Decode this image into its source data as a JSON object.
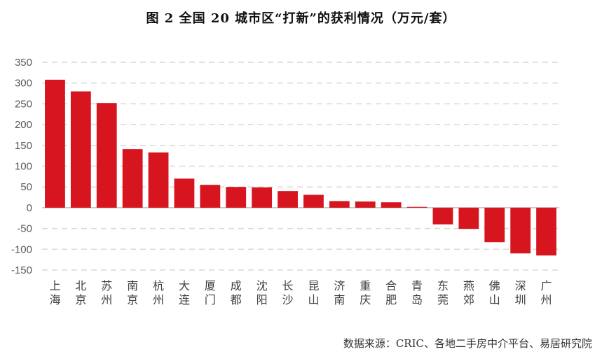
{
  "chart_data": {
    "type": "bar",
    "title": "图 2 全国 20 城市区“打新”的获利情况（万元/套）",
    "xlabel": "",
    "ylabel": "",
    "ylim": [
      -150,
      350
    ],
    "yticks": [
      350,
      300,
      250,
      200,
      150,
      100,
      50,
      0,
      -50,
      -100,
      -150
    ],
    "grid": true,
    "categories": [
      "上海",
      "北京",
      "苏州",
      "南京",
      "杭州",
      "大连",
      "厦门",
      "成都",
      "沈阳",
      "长沙",
      "昆山",
      "济南",
      "重庆",
      "合肥",
      "青岛",
      "东莞",
      "燕郊",
      "佛山",
      "深圳",
      "广州"
    ],
    "values": [
      308,
      280,
      252,
      141,
      133,
      70,
      55,
      50,
      49,
      40,
      31,
      16,
      15,
      13,
      2,
      -40,
      -51,
      -83,
      -110,
      -115
    ],
    "bar_color": "#D7151F",
    "source": "数据来源：CRIC、各地二手房中介平台、易居研究院"
  }
}
